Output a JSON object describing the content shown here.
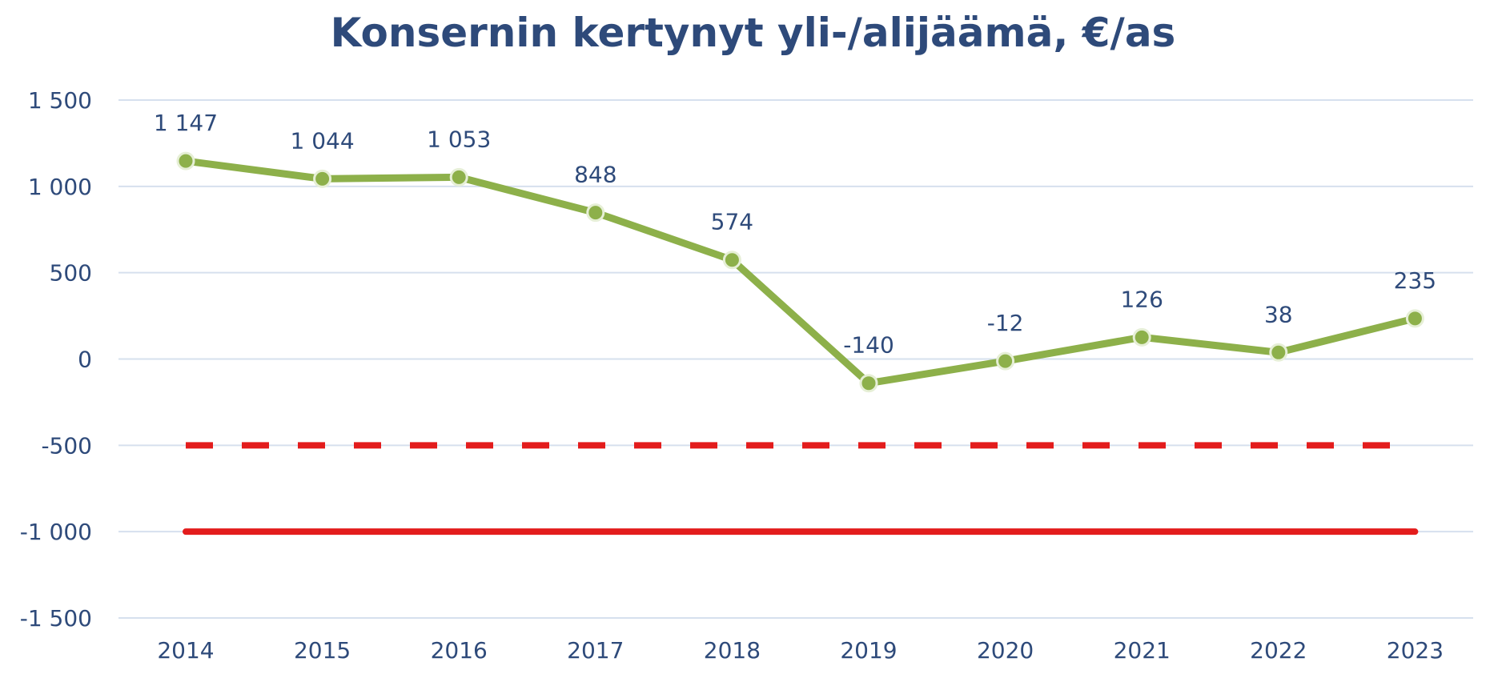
{
  "chart_data": {
    "type": "line",
    "title": "Konsernin kertynyt yli-/alijäämä, €/as",
    "xlabel": "",
    "ylabel": "",
    "ylim": [
      -1500,
      1500
    ],
    "yticks": [
      1500,
      1000,
      500,
      0,
      -500,
      -1000,
      -1500
    ],
    "ytick_labels": [
      "1 500",
      "1 000",
      "500",
      "0",
      "-500",
      "-1 000",
      "-1 500"
    ],
    "categories": [
      "2014",
      "2015",
      "2016",
      "2017",
      "2018",
      "2019",
      "2020",
      "2021",
      "2022",
      "2023"
    ],
    "series": [
      {
        "values": [
          1147,
          1044,
          1053,
          848,
          574,
          -140,
          -12,
          126,
          38,
          235
        ],
        "labels": [
          "1 147",
          "1 044",
          "1 053",
          "848",
          "574",
          "-140",
          "-12",
          "126",
          "38",
          "235"
        ],
        "color": "#8db04a",
        "marker": "circle"
      }
    ],
    "reference_lines": [
      {
        "value": -500,
        "style": "dashed",
        "color": "#e31c1c"
      },
      {
        "value": -1000,
        "style": "solid",
        "color": "#e31c1c"
      }
    ],
    "grid": true,
    "legend": "none",
    "colors": {
      "title": "#2e4a7a",
      "ticks": "#2e4a7a",
      "gridline": "#d6e0ee",
      "marker_fill": "#8db04a",
      "marker_stroke": "#e6efd6"
    }
  }
}
